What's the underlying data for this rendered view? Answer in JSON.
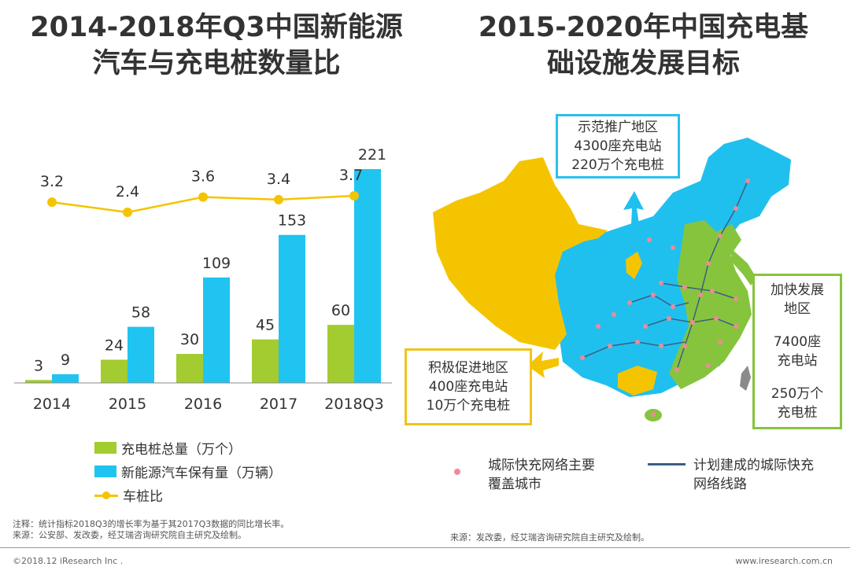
{
  "left_title": {
    "line1": "2014-2018年Q3中国新能源",
    "line2": "汽车与充电桩数量比"
  },
  "right_title": {
    "line1": "2015-2020年中国充电基",
    "line2": "础设施发展目标"
  },
  "chart_data": {
    "type": "bar",
    "title": "2014-2018年Q3中国新能源汽车与充电桩数量比",
    "categories": [
      "2014",
      "2015",
      "2016",
      "2017",
      "2018Q3"
    ],
    "series": [
      {
        "name": "充电桩总量（万个）",
        "kind": "bar",
        "color": "#a2cc2f",
        "values": [
          3,
          24,
          30,
          45,
          60
        ]
      },
      {
        "name": "新能源汽车保有量（万辆）",
        "kind": "bar",
        "color": "#20c4f0",
        "values": [
          9,
          58,
          109,
          153,
          221
        ]
      },
      {
        "name": "车桩比",
        "kind": "line",
        "color": "#f5c400",
        "values": [
          3.2,
          2.4,
          3.6,
          3.4,
          3.7
        ]
      }
    ],
    "ylim_bars": [
      0,
      230
    ],
    "ylim_ratio": [
      0,
      4
    ],
    "legend_position": "bottom-left",
    "grid": false
  },
  "legend": {
    "piles": "充电桩总量（万个）",
    "vehicles": "新能源汽车保有量（万辆）",
    "ratio": "车桩比"
  },
  "map": {
    "demo": {
      "line1": "示范推广地区",
      "line2": "4300座充电站",
      "line3": "220万个充电桩",
      "color": "#2bc0ee"
    },
    "active": {
      "line1": "积极促进地区",
      "line2": "400座充电站",
      "line3": "10万个充电桩",
      "color": "#f0c419"
    },
    "fast": {
      "line1": "加快发展",
      "line2": "地区",
      "line3": "7400座",
      "line4": "充电站",
      "line5": "250万个",
      "line6": "充电桩",
      "color": "#86c43d"
    },
    "legend_cities": {
      "line1": "城际快充网络主要",
      "line2": "覆盖城市"
    },
    "legend_routes": {
      "line1": "计划建成的城际快充",
      "line2": "网络线路"
    }
  },
  "notes": {
    "note_left": "注释：统计指标2018Q3的增长率为基于其2017Q3数据的同比增长率。",
    "source_left": "来源：公安部、发改委，经艾瑞咨询研究院自主研究及绘制。",
    "source_right": "来源：发改委，经艾瑞咨询研究院自主研究及绘制。"
  },
  "footer": {
    "copyright": "©2018.12 iResearch Inc .",
    "website": "www.iresearch.com.cn"
  }
}
